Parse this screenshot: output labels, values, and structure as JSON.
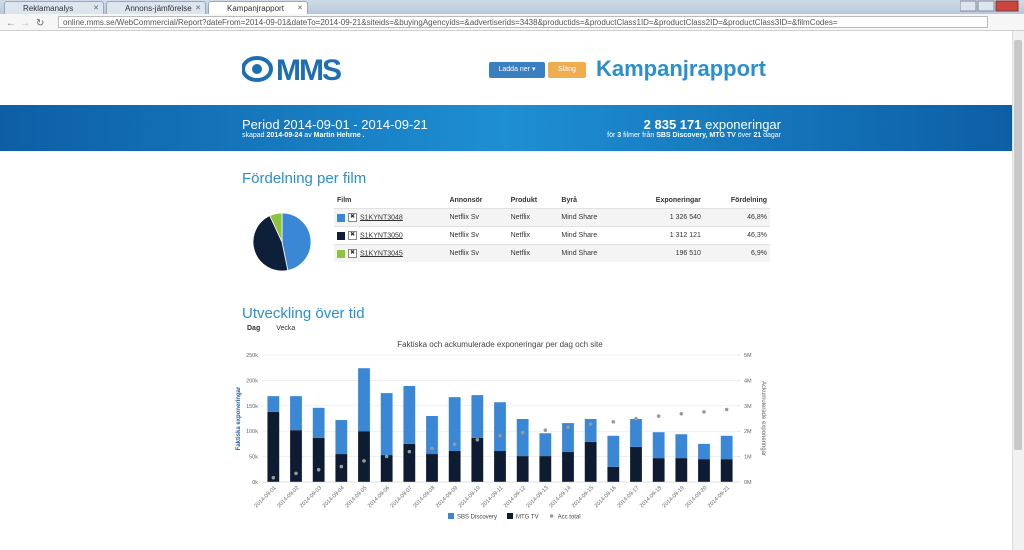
{
  "browser": {
    "tabs": [
      "Reklamanalys",
      "Annons-jämförelse",
      "Kampanjrapport"
    ],
    "url": "online.mms.se/WebCommercial/Report?dateFrom=2014-09-01&dateTo=2014-09-21&siteids=&buyingAgencyids=&advertiserids=3438&productids=&productClass1ID=&productClass2ID=&productClass3ID=&filmCodes="
  },
  "header": {
    "logo": "MMS",
    "buttons": [
      "Ladda ner ▾",
      "Släng"
    ],
    "title": "Kampanjrapport"
  },
  "banner": {
    "period": "Period 2014-09-01 - 2014-09-21",
    "created": [
      "skapad",
      "2014-09-24",
      "av",
      "Martin Hehrne",
      "."
    ],
    "exposures": [
      "2 835 171",
      "exponeringar"
    ],
    "films": [
      "för",
      "3",
      "filmer från",
      "SBS Discovery, MTG TV",
      "över",
      "21",
      "dagar"
    ]
  },
  "section1": {
    "title": "Fördelning per film",
    "table": {
      "header": [
        "Film",
        "Annonsör",
        "Produkt",
        "Byrå",
        "Exponeringar",
        "Fördelning"
      ],
      "rows": [
        [
          "S1KYNT3048",
          "Netflix Sv",
          "Netflix",
          "Mind Share",
          "1 326 540",
          "46,8%"
        ],
        [
          "S1KYNT3050",
          "Netflix Sv",
          "Netflix",
          "Mind Share",
          "1 312 121",
          "46,3%"
        ],
        [
          "S1KYNT3045",
          "Netflix Sv",
          "Netflix",
          "Mind Share",
          "196 510",
          "6,9%"
        ]
      ]
    }
  },
  "section2": {
    "title": "Utveckling över tid",
    "tabs": [
      "Dag",
      "Vecka"
    ]
  },
  "chart_data": [
    {
      "type": "pie",
      "values": [
        46.8,
        46.3,
        6.9
      ],
      "colors": [
        "#3a87d6",
        "#0e1f3a",
        "#8fc43a"
      ]
    },
    {
      "type": "bar",
      "stacked": true,
      "title": "Faktiska och ackumulerade exponeringar per dag och site",
      "ylabel": "Faktiska exponeringar",
      "y2label": "Ackumulerade exponeringar",
      "categories": [
        "2014-09-01",
        "2014-09-02",
        "2014-09-03",
        "2014-09-04",
        "2014-09-05",
        "2014-09-06",
        "2014-09-07",
        "2014-09-08",
        "2014-09-09",
        "2014-09-10",
        "2014-09-11",
        "2014-09-12",
        "2014-09-13",
        "2014-09-14",
        "2014-09-15",
        "2014-09-16",
        "2014-09-17",
        "2014-09-18",
        "2014-09-19",
        "2014-09-20",
        "2014-09-21"
      ],
      "series": [
        {
          "name": "SBS Discovery",
          "color": "#3a87d6",
          "values": [
            31000,
            67000,
            59000,
            67000,
            124000,
            122000,
            114000,
            75000,
            106000,
            84000,
            96000,
            73000,
            45000,
            57000,
            45000,
            61000,
            55000,
            51000,
            47000,
            30000,
            46000
          ]
        },
        {
          "name": "MTG TV",
          "color": "#0d1b33",
          "values": [
            138000,
            102000,
            87000,
            55000,
            100000,
            53000,
            75000,
            55000,
            61000,
            87000,
            61000,
            51000,
            51000,
            59000,
            79000,
            30000,
            69000,
            47000,
            47000,
            45000,
            45000
          ]
        },
        {
          "name": "Acc total",
          "color": "#999999",
          "axis": "y2",
          "values": [
            169000,
            338000,
            484000,
            606000,
            830000,
            1005000,
            1194000,
            1324000,
            1491000,
            1662000,
            1819000,
            1943000,
            2039000,
            2155000,
            2279000,
            2370000,
            2494000,
            2592000,
            2686000,
            2761000,
            2852000
          ]
        }
      ],
      "ylim": [
        0,
        250000
      ],
      "yticks": [
        {
          "value": 0,
          "label": "0k"
        },
        {
          "value": 50000,
          "label": "50k"
        },
        {
          "value": 100000,
          "label": "100k"
        },
        {
          "value": 150000,
          "label": "150k"
        },
        {
          "value": 200000,
          "label": "200k"
        },
        {
          "value": 250000,
          "label": "250k"
        }
      ],
      "y2lim": [
        0,
        5000000
      ],
      "y2ticks": [
        {
          "value": 0,
          "label": "0M"
        },
        {
          "value": 1000000,
          "label": "1M"
        },
        {
          "value": 2000000,
          "label": "2M"
        },
        {
          "value": 3000000,
          "label": "3M"
        },
        {
          "value": 4000000,
          "label": "4M"
        },
        {
          "value": 5000000,
          "label": "5M"
        }
      ],
      "grid": true,
      "legend": "bottom"
    }
  ]
}
